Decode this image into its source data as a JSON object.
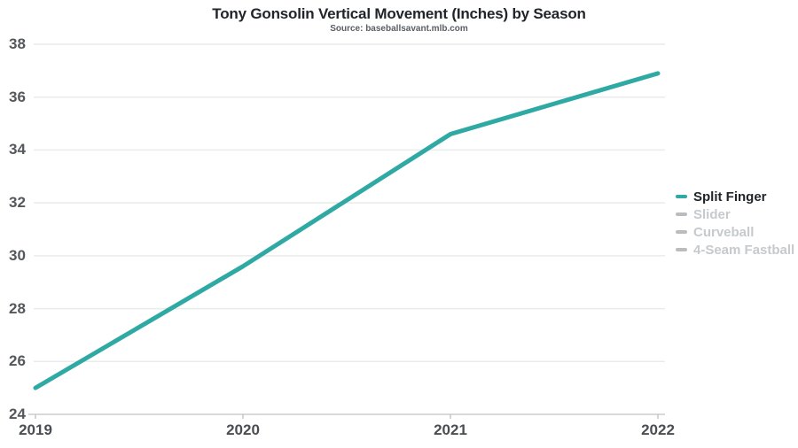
{
  "chart_data": {
    "type": "line",
    "title": "Tony Gonsolin Vertical Movement (Inches) by Season",
    "subtitle": "Source: baseballsavant.mlb.com",
    "categories": [
      "2019",
      "2020",
      "2021",
      "2022"
    ],
    "yticks": [
      24,
      26,
      28,
      30,
      32,
      34,
      36,
      38
    ],
    "ylim": [
      24,
      38
    ],
    "grid": true,
    "legend_position": "right",
    "series": [
      {
        "name": "Split Finger",
        "values": [
          25.0,
          29.6,
          34.6,
          36.9
        ],
        "active": true
      },
      {
        "name": "Slider",
        "values": [],
        "active": false
      },
      {
        "name": "Curveball",
        "values": [],
        "active": false
      },
      {
        "name": "4-Seam Fastball",
        "values": [],
        "active": false
      }
    ]
  },
  "colors": {
    "accent": "#2fa9a3",
    "inactive_swatch": "#b9bdbf",
    "inactive_text": "#c6cacc",
    "gridline": "#e9ebec",
    "axis_line": "#d7dadb",
    "tick": "#c3c6c8"
  }
}
